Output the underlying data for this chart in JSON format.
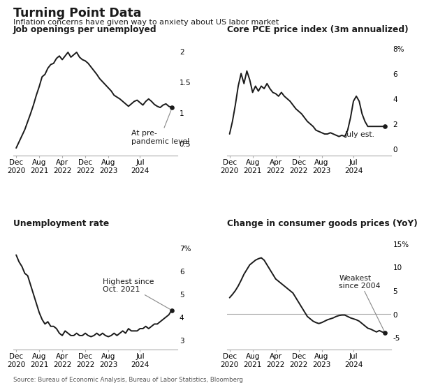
{
  "title": "Turning Point Data",
  "subtitle": "Inflation concerns have given way to anxiety about US labor market",
  "source": "Source: Bureau of Economic Analysis, Bureau of Labor Statistics, Bloomberg",
  "background_color": "#ffffff",
  "chart1": {
    "title": "Job openings per unemployed",
    "x_labels": [
      "Dec\n2020",
      "Aug\n2021",
      "Apr\n2022",
      "Dec\n2022",
      "Aug\n2023",
      "Jul\n2024"
    ],
    "yticks": [
      0.5,
      1.0,
      1.5,
      2.0
    ],
    "ylim": [
      0.3,
      2.25
    ],
    "annotation": "At pre-\npandemic level",
    "has_ytick_pct_top": false,
    "data_x": [
      0,
      1,
      2,
      3,
      4,
      5,
      6,
      7,
      8,
      9,
      10,
      11,
      12,
      13,
      14,
      15,
      16,
      17,
      18,
      19,
      20,
      21,
      22,
      23,
      24,
      25,
      26,
      27,
      28,
      29,
      30,
      31,
      32,
      33,
      34,
      35,
      36,
      37,
      38,
      39,
      40,
      41,
      42,
      43,
      44,
      45,
      46,
      47,
      48,
      49,
      50,
      51,
      52,
      53,
      54
    ],
    "data_y": [
      0.42,
      0.52,
      0.62,
      0.72,
      0.85,
      0.98,
      1.12,
      1.28,
      1.42,
      1.58,
      1.62,
      1.72,
      1.78,
      1.8,
      1.88,
      1.92,
      1.86,
      1.92,
      1.98,
      1.9,
      1.94,
      1.98,
      1.9,
      1.86,
      1.84,
      1.8,
      1.74,
      1.68,
      1.62,
      1.55,
      1.5,
      1.45,
      1.4,
      1.35,
      1.28,
      1.25,
      1.22,
      1.18,
      1.14,
      1.1,
      1.14,
      1.18,
      1.2,
      1.16,
      1.12,
      1.18,
      1.22,
      1.18,
      1.13,
      1.1,
      1.08,
      1.12,
      1.14,
      1.1,
      1.08
    ]
  },
  "chart2": {
    "title": "Core PCE price index (3m annualized)",
    "x_labels": [
      "Dec\n2020",
      "Aug\n2021",
      "Apr\n2022",
      "Dec\n2022",
      "Aug\n2023",
      "Jul\n2024"
    ],
    "yticks": [
      0,
      2,
      4,
      6,
      8
    ],
    "ylim": [
      -0.5,
      9.0
    ],
    "annotation": "July est.",
    "has_ytick_pct_top": true,
    "data_x": [
      0,
      1,
      2,
      3,
      4,
      5,
      6,
      7,
      8,
      9,
      10,
      11,
      12,
      13,
      14,
      15,
      16,
      17,
      18,
      19,
      20,
      21,
      22,
      23,
      24,
      25,
      26,
      27,
      28,
      29,
      30,
      31,
      32,
      33,
      34,
      35,
      36,
      37,
      38,
      39,
      40,
      41,
      42,
      43,
      44,
      45,
      46,
      47,
      48,
      49,
      50,
      51,
      52,
      53,
      54
    ],
    "data_y": [
      1.2,
      2.2,
      3.5,
      5.0,
      6.0,
      5.2,
      6.2,
      5.5,
      4.5,
      5.0,
      4.6,
      5.0,
      4.8,
      5.2,
      4.8,
      4.5,
      4.4,
      4.2,
      4.5,
      4.2,
      4.0,
      3.8,
      3.5,
      3.2,
      3.0,
      2.8,
      2.5,
      2.2,
      2.0,
      1.8,
      1.5,
      1.4,
      1.3,
      1.2,
      1.2,
      1.3,
      1.2,
      1.1,
      1.0,
      1.1,
      1.0,
      1.5,
      2.5,
      3.8,
      4.2,
      3.8,
      2.8,
      2.2,
      1.8,
      1.8,
      1.8,
      1.8,
      1.8,
      1.8,
      1.8
    ]
  },
  "chart3": {
    "title": "Unemployment rate",
    "x_labels": [
      "Dec\n2020",
      "Aug\n2021",
      "Apr\n2022",
      "Dec\n2022",
      "Aug\n2023",
      "Jul\n2024"
    ],
    "yticks": [
      3,
      4,
      5,
      6,
      7
    ],
    "ylim": [
      2.6,
      7.8
    ],
    "annotation": "Highest since\nOct. 2021",
    "has_ytick_pct_top": true,
    "data_x": [
      0,
      1,
      2,
      3,
      4,
      5,
      6,
      7,
      8,
      9,
      10,
      11,
      12,
      13,
      14,
      15,
      16,
      17,
      18,
      19,
      20,
      21,
      22,
      23,
      24,
      25,
      26,
      27,
      28,
      29,
      30,
      31,
      32,
      33,
      34,
      35,
      36,
      37,
      38,
      39,
      40,
      41,
      42,
      43,
      44,
      45,
      46,
      47,
      48,
      49,
      50,
      51,
      52,
      53,
      54
    ],
    "data_y": [
      6.7,
      6.4,
      6.2,
      5.9,
      5.8,
      5.4,
      5.0,
      4.6,
      4.2,
      3.9,
      3.7,
      3.8,
      3.6,
      3.6,
      3.5,
      3.3,
      3.2,
      3.4,
      3.3,
      3.2,
      3.2,
      3.3,
      3.2,
      3.2,
      3.3,
      3.2,
      3.15,
      3.2,
      3.3,
      3.2,
      3.3,
      3.2,
      3.15,
      3.2,
      3.3,
      3.2,
      3.3,
      3.4,
      3.3,
      3.5,
      3.4,
      3.4,
      3.4,
      3.5,
      3.5,
      3.6,
      3.5,
      3.6,
      3.7,
      3.7,
      3.8,
      3.9,
      4.0,
      4.1,
      4.3
    ]
  },
  "chart4": {
    "title": "Change in consumer goods prices (YoY)",
    "x_labels": [
      "Dec\n2020",
      "Aug\n2021",
      "Apr\n2022",
      "Dec\n2022",
      "Aug\n2023",
      "Jul\n2024"
    ],
    "yticks": [
      -5,
      0,
      5,
      10,
      15
    ],
    "ylim": [
      -7.5,
      18.0
    ],
    "annotation": "Weakest\nsince 2004",
    "has_ytick_pct_top": true,
    "zero_line": true,
    "data_x": [
      0,
      1,
      2,
      3,
      4,
      5,
      6,
      7,
      8,
      9,
      10,
      11,
      12,
      13,
      14,
      15,
      16,
      17,
      18,
      19,
      20,
      21,
      22,
      23,
      24,
      25,
      26,
      27,
      28,
      29,
      30,
      31,
      32,
      33,
      34,
      35,
      36,
      37,
      38,
      39,
      40,
      41,
      42,
      43,
      44,
      45,
      46,
      47,
      48,
      49,
      50,
      51,
      52,
      53,
      54
    ],
    "data_y": [
      3.5,
      4.2,
      5.0,
      6.0,
      7.2,
      8.5,
      9.5,
      10.5,
      11.0,
      11.5,
      11.8,
      12.0,
      11.5,
      10.5,
      9.5,
      8.5,
      7.5,
      7.0,
      6.5,
      6.0,
      5.5,
      5.0,
      4.5,
      3.5,
      2.5,
      1.5,
      0.5,
      -0.5,
      -1.0,
      -1.5,
      -1.8,
      -2.0,
      -1.8,
      -1.5,
      -1.2,
      -1.0,
      -0.8,
      -0.5,
      -0.3,
      -0.2,
      -0.2,
      -0.5,
      -0.8,
      -1.0,
      -1.2,
      -1.5,
      -2.0,
      -2.5,
      -3.0,
      -3.2,
      -3.5,
      -3.8,
      -3.5,
      -3.8,
      -4.0
    ]
  },
  "line_color": "#1a1a1a",
  "dot_color": "#1a1a1a",
  "tick_label_fontsize": 7.5,
  "chart_title_fontsize": 8.8,
  "annotation_fontsize": 7.8,
  "x_tick_positions": [
    0,
    8,
    16,
    24,
    32,
    43
  ]
}
